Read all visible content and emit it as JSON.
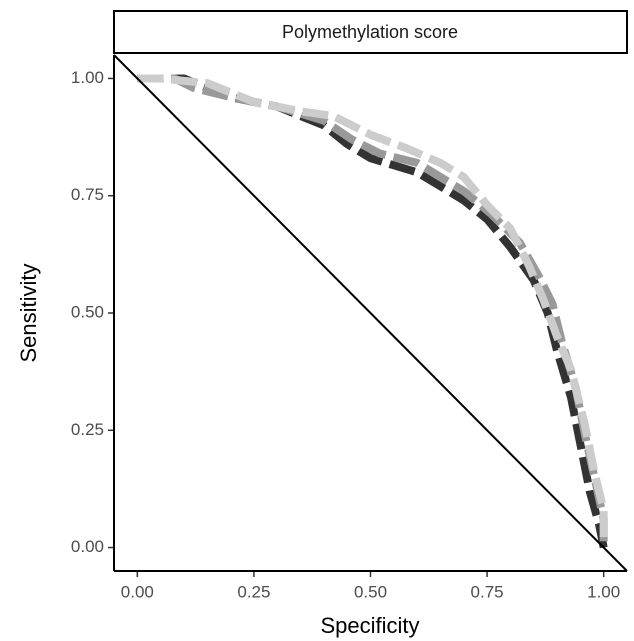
{
  "chart_data": {
    "type": "line",
    "title": "Polymethylation score",
    "x_label": "Specificity",
    "y_label": "Sensitivity",
    "xlim": [
      -0.05,
      1.05
    ],
    "ylim": [
      -0.05,
      1.05
    ],
    "xticks": [
      {
        "value": 0,
        "label": "0.00"
      },
      {
        "value": 0.25,
        "label": "0.25"
      },
      {
        "value": 0.5,
        "label": "0.50"
      },
      {
        "value": 0.75,
        "label": "0.75"
      },
      {
        "value": 1,
        "label": "1.00"
      }
    ],
    "yticks": [
      {
        "value": 0,
        "label": "0.00"
      },
      {
        "value": 0.25,
        "label": "0.25"
      },
      {
        "value": 0.5,
        "label": "0.50"
      },
      {
        "value": 0.75,
        "label": "0.75"
      },
      {
        "value": 1,
        "label": "1.00"
      }
    ],
    "reference_line": true,
    "series": [
      {
        "color": "#333333",
        "x": [
          0,
          0.1,
          0.15,
          0.2,
          0.3,
          0.4,
          0.45,
          0.5,
          0.6,
          0.7,
          0.75,
          0.8,
          0.85,
          0.88,
          0.9,
          0.93,
          0.95,
          0.97,
          0.99,
          1
        ],
        "values": [
          1,
          1,
          0.98,
          0.96,
          0.94,
          0.9,
          0.86,
          0.83,
          0.8,
          0.74,
          0.7,
          0.64,
          0.57,
          0.5,
          0.42,
          0.32,
          0.22,
          0.12,
          0.05,
          0
        ]
      },
      {
        "color": "#999999",
        "x": [
          0,
          0.08,
          0.12,
          0.2,
          0.3,
          0.4,
          0.46,
          0.52,
          0.6,
          0.7,
          0.76,
          0.82,
          0.86,
          0.89,
          0.91,
          0.94,
          0.96,
          0.98,
          1,
          1
        ],
        "values": [
          1,
          1,
          0.98,
          0.96,
          0.94,
          0.91,
          0.87,
          0.84,
          0.82,
          0.76,
          0.71,
          0.65,
          0.58,
          0.52,
          0.44,
          0.34,
          0.24,
          0.15,
          0.06,
          0
        ]
      },
      {
        "color": "#cccccc",
        "x": [
          0,
          0.05,
          0.15,
          0.25,
          0.35,
          0.42,
          0.5,
          0.58,
          0.65,
          0.7,
          0.75,
          0.8,
          0.84,
          0.87,
          0.9,
          0.93,
          0.96,
          0.98,
          1,
          1
        ],
        "values": [
          1,
          1,
          0.99,
          0.95,
          0.93,
          0.92,
          0.88,
          0.85,
          0.82,
          0.79,
          0.73,
          0.68,
          0.6,
          0.53,
          0.45,
          0.38,
          0.26,
          0.16,
          0.08,
          0.01
        ]
      }
    ]
  }
}
